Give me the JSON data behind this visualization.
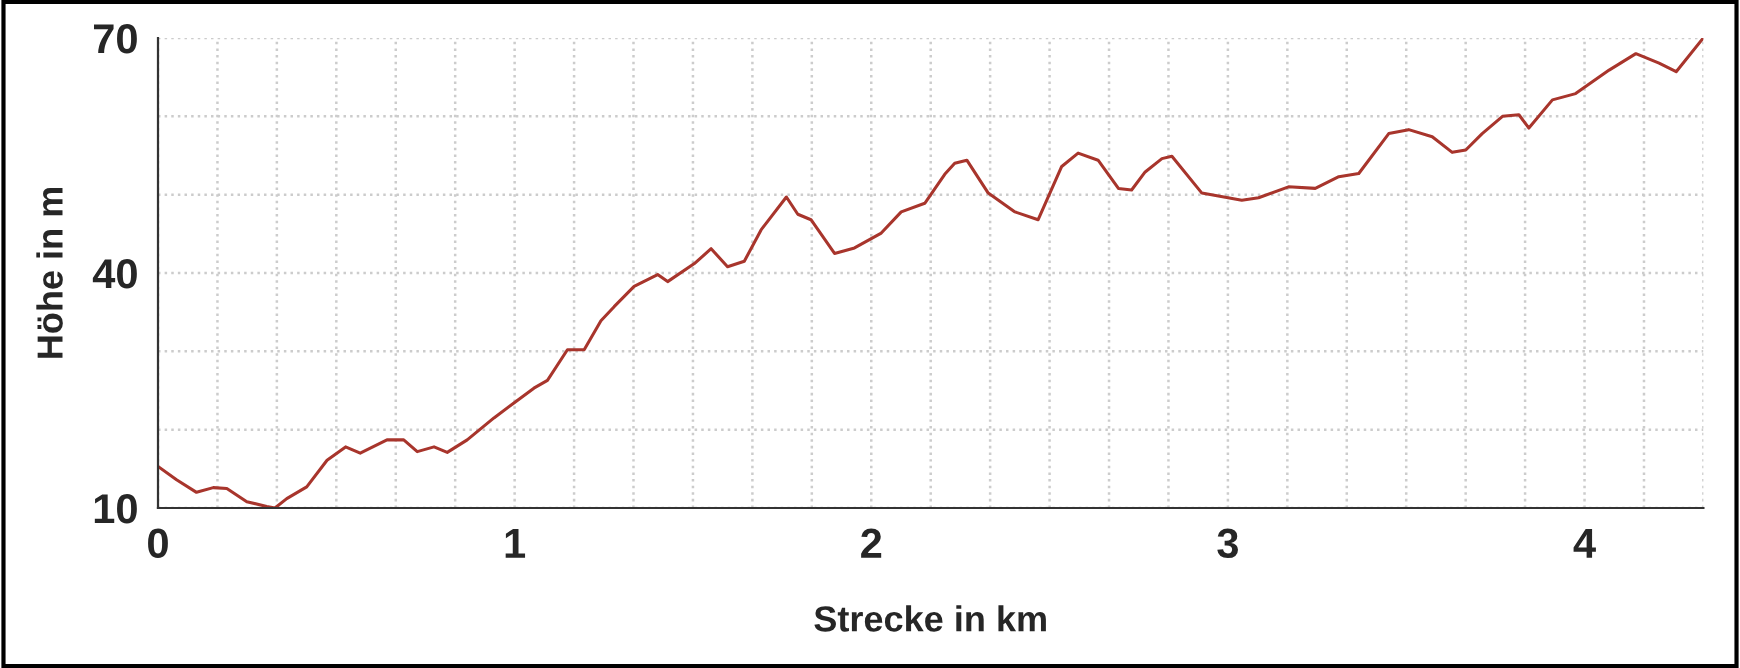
{
  "chart_data": {
    "type": "line",
    "xlabel": "Strecke in km",
    "ylabel": "Höhe in m",
    "xlim": [
      0,
      4.3333
    ],
    "ylim": [
      10,
      70
    ],
    "xticks": [
      0,
      {
        "value": 0.1667,
        "label": null
      },
      {
        "value": 0.3333,
        "label": null
      },
      {
        "value": 0.5,
        "label": null
      },
      {
        "value": 0.6667,
        "label": null
      },
      {
        "value": 0.8333,
        "label": null
      },
      1,
      {
        "value": 1.1667,
        "label": null
      },
      {
        "value": 1.3333,
        "label": null
      },
      {
        "value": 1.5,
        "label": null
      },
      {
        "value": 1.6667,
        "label": null
      },
      {
        "value": 1.8333,
        "label": null
      },
      2,
      {
        "value": 2.1667,
        "label": null
      },
      {
        "value": 2.3333,
        "label": null
      },
      {
        "value": 2.5,
        "label": null
      },
      {
        "value": 2.6667,
        "label": null
      },
      {
        "value": 2.8333,
        "label": null
      },
      3,
      {
        "value": 3.1667,
        "label": null
      },
      {
        "value": 3.3333,
        "label": null
      },
      {
        "value": 3.5,
        "label": null
      },
      {
        "value": 3.6667,
        "label": null
      },
      {
        "value": 3.8333,
        "label": null
      },
      4,
      {
        "value": 4.1667,
        "label": null
      },
      {
        "value": 4.3333,
        "label": null
      }
    ],
    "yticks": [
      10,
      {
        "value": 20,
        "label": null
      },
      {
        "value": 30,
        "label": null
      },
      40,
      {
        "value": 50,
        "label": null
      },
      {
        "value": 60,
        "label": null
      },
      70
    ],
    "grid": true,
    "marker": "none",
    "line_style": "solid",
    "series": [
      {
        "color": "#a8352c",
        "x": [
          0,
          0.052,
          0.108,
          0.155,
          0.193,
          0.249,
          0.305,
          0.328,
          0.361,
          0.417,
          0.474,
          0.526,
          0.567,
          0.642,
          0.689,
          0.727,
          0.774,
          0.811,
          0.867,
          0.942,
          0.998,
          1.054,
          1.092,
          1.148,
          1.195,
          1.242,
          1.279,
          1.335,
          1.401,
          1.429,
          1.504,
          1.551,
          1.597,
          1.644,
          1.691,
          1.762,
          1.794,
          1.831,
          1.897,
          1.953,
          2.028,
          2.084,
          2.15,
          2.206,
          2.234,
          2.268,
          2.328,
          2.403,
          2.468,
          2.534,
          2.58,
          2.636,
          2.693,
          2.73,
          2.768,
          2.815,
          2.843,
          2.927,
          3.039,
          3.086,
          3.17,
          3.245,
          3.311,
          3.367,
          3.451,
          3.507,
          3.573,
          3.629,
          3.667,
          3.713,
          3.77,
          3.816,
          3.844,
          3.91,
          3.975,
          4.069,
          4.144,
          4.209,
          4.257,
          4.333
        ],
        "values": [
          15.3,
          13.6,
          12.0,
          12.6,
          12.5,
          10.8,
          10.2,
          10.0,
          11.2,
          12.7,
          16.1,
          17.8,
          17.0,
          18.7,
          18.7,
          17.2,
          17.8,
          17.1,
          18.7,
          21.5,
          23.4,
          25.3,
          26.3,
          30.2,
          30.2,
          33.9,
          35.7,
          38.3,
          39.8,
          38.9,
          41.2,
          43.1,
          40.8,
          41.5,
          45.5,
          49.7,
          47.5,
          46.8,
          42.5,
          43.2,
          45.1,
          47.8,
          48.9,
          52.6,
          54.0,
          54.4,
          50.2,
          47.8,
          46.8,
          53.6,
          55.3,
          54.4,
          50.8,
          50.6,
          52.9,
          54.6,
          54.9,
          50.2,
          49.3,
          49.6,
          51.0,
          50.8,
          52.3,
          52.7,
          57.8,
          58.3,
          57.4,
          55.4,
          55.7,
          57.8,
          60.0,
          60.2,
          58.5,
          62.1,
          62.9,
          65.9,
          68.0,
          66.8,
          65.7,
          70.0
        ]
      }
    ]
  }
}
